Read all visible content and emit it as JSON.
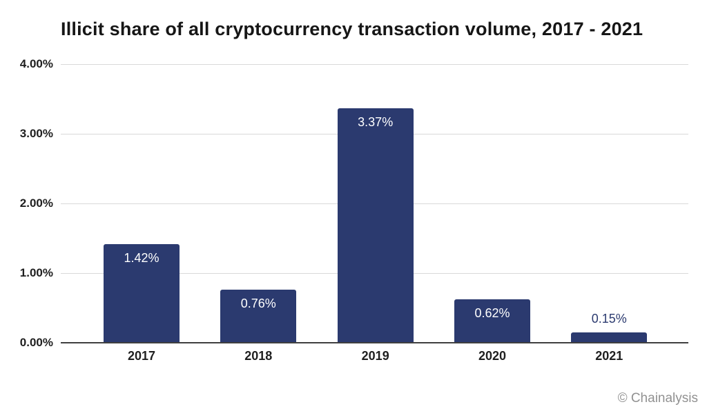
{
  "attribution": "© Chainalysis",
  "colors": {
    "bar": "#2b3a6f",
    "gridline": "#d9d9d9",
    "axis_line": "#3f3f3f",
    "value_label_on_bar": "#ffffff",
    "value_label_above_bar": "#2b3a6f",
    "tick_text": "#1f1f1f",
    "title_text": "#161616",
    "attribution_text": "#919191",
    "background": "#ffffff"
  },
  "chart_data": {
    "type": "bar",
    "title": "Illicit share of all cryptocurrency transaction volume, 2017 - 2021",
    "categories": [
      "2017",
      "2018",
      "2019",
      "2020",
      "2021"
    ],
    "values": [
      1.42,
      0.76,
      3.37,
      0.62,
      0.15
    ],
    "value_labels": [
      "1.42%",
      "0.76%",
      "3.37%",
      "0.62%",
      "0.15%"
    ],
    "xlabel": "",
    "ylabel": "",
    "ylim": [
      0,
      4
    ],
    "yticks": [
      0,
      1,
      2,
      3,
      4
    ],
    "ytick_labels": [
      "0.00%",
      "1.00%",
      "2.00%",
      "3.00%",
      "4.00%"
    ],
    "grid": "horizontal",
    "legend": "none"
  }
}
